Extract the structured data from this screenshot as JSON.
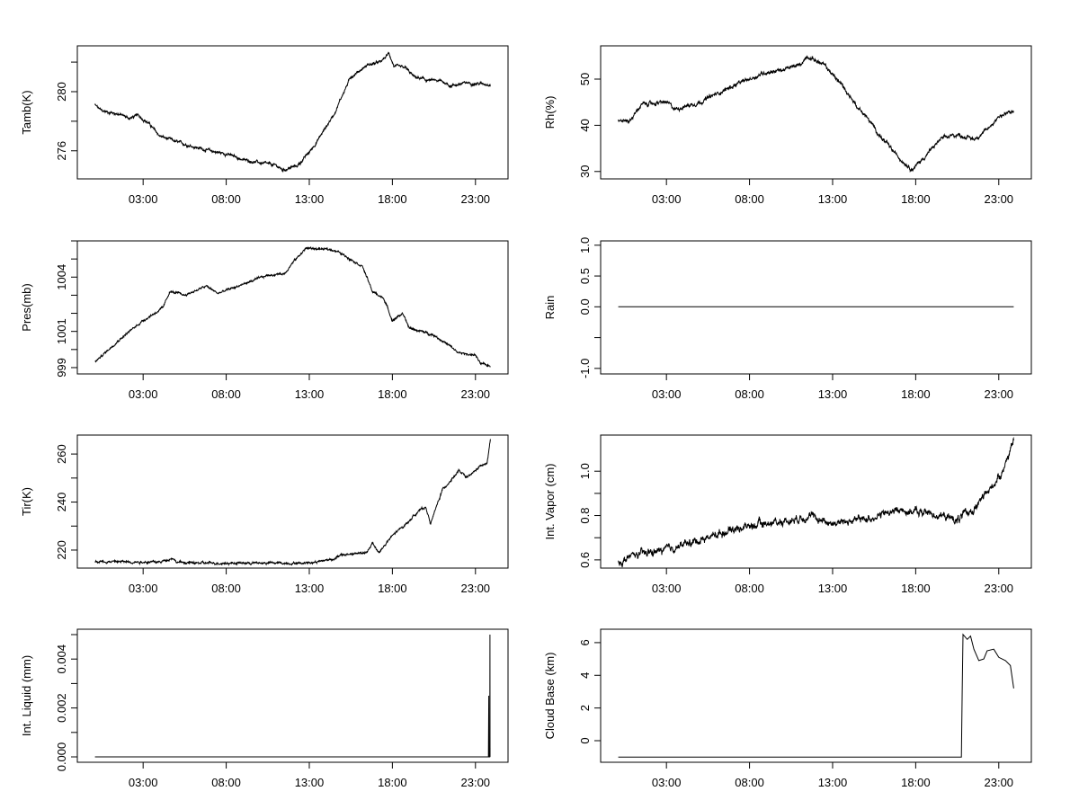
{
  "chart_data": [
    {
      "type": "line",
      "id": "tamb",
      "ylabel": "Tamb(K)",
      "ylim": [
        274.1,
        283.1
      ],
      "xlim": [
        0,
        24
      ],
      "xticks": [
        {
          "v": 3,
          "label": "03:00"
        },
        {
          "v": 8,
          "label": "08:00"
        },
        {
          "v": 13,
          "label": "13:00"
        },
        {
          "v": 18,
          "label": "18:00"
        },
        {
          "v": 23,
          "label": "23:00"
        }
      ],
      "yticks": [
        {
          "v": 276,
          "label": "276"
        },
        {
          "v": 278,
          "label": ""
        },
        {
          "v": 280,
          "label": "280"
        },
        {
          "v": 282,
          "label": ""
        }
      ],
      "noise": 0.08,
      "series": [
        [
          0.1,
          279.1
        ],
        [
          0.5,
          278.7
        ],
        [
          1.5,
          278.5
        ],
        [
          2.2,
          278.2
        ],
        [
          2.7,
          278.4
        ],
        [
          3.3,
          277.9
        ],
        [
          4,
          277.0
        ],
        [
          5,
          276.6
        ],
        [
          6,
          276.3
        ],
        [
          7,
          276.0
        ],
        [
          8,
          275.8
        ],
        [
          9,
          275.4
        ],
        [
          10,
          275.2
        ],
        [
          11,
          275.0
        ],
        [
          11.4,
          274.7
        ],
        [
          12.3,
          275.0
        ],
        [
          13,
          275.9
        ],
        [
          13.5,
          276.7
        ],
        [
          14.5,
          278.5
        ],
        [
          15,
          279.8
        ],
        [
          15.5,
          281.0
        ],
        [
          16.5,
          281.8
        ],
        [
          17.3,
          282.0
        ],
        [
          17.8,
          282.6
        ],
        [
          18.1,
          281.7
        ],
        [
          18.8,
          281.6
        ],
        [
          19.3,
          281.0
        ],
        [
          20,
          280.8
        ],
        [
          21,
          280.7
        ],
        [
          21.5,
          280.4
        ],
        [
          22.5,
          280.6
        ],
        [
          23.9,
          280.5
        ]
      ]
    },
    {
      "type": "line",
      "id": "rh",
      "ylabel": "Rh(%)",
      "ylim": [
        28.4,
        57.2
      ],
      "xlim": [
        0,
        24
      ],
      "xticks": [
        {
          "v": 3,
          "label": "03:00"
        },
        {
          "v": 8,
          "label": "08:00"
        },
        {
          "v": 13,
          "label": "13:00"
        },
        {
          "v": 18,
          "label": "18:00"
        },
        {
          "v": 23,
          "label": "23:00"
        }
      ],
      "yticks": [
        {
          "v": 30,
          "label": "30"
        },
        {
          "v": 40,
          "label": "40"
        },
        {
          "v": 50,
          "label": "50"
        }
      ],
      "noise": 0.35,
      "series": [
        [
          0.1,
          41
        ],
        [
          0.8,
          41
        ],
        [
          1.5,
          44.5
        ],
        [
          3,
          45
        ],
        [
          3.5,
          43.5
        ],
        [
          5,
          45
        ],
        [
          7,
          48.5
        ],
        [
          9,
          51.5
        ],
        [
          10,
          52
        ],
        [
          11,
          53
        ],
        [
          11.5,
          55
        ],
        [
          12.5,
          53
        ],
        [
          13.5,
          49
        ],
        [
          14.5,
          44
        ],
        [
          15,
          42
        ],
        [
          16,
          37
        ],
        [
          17,
          33
        ],
        [
          17.8,
          30.5
        ],
        [
          18.5,
          33
        ],
        [
          19.5,
          37
        ],
        [
          20.5,
          38
        ],
        [
          21.5,
          37
        ],
        [
          22.3,
          39
        ],
        [
          23,
          42
        ],
        [
          23.9,
          43
        ]
      ]
    },
    {
      "type": "line",
      "id": "pres",
      "ylabel": "Pres(mb)",
      "ylim": [
        998.65,
        1006
      ],
      "xlim": [
        0,
        24
      ],
      "xticks": [
        {
          "v": 3,
          "label": "03:00"
        },
        {
          "v": 8,
          "label": "08:00"
        },
        {
          "v": 13,
          "label": "13:00"
        },
        {
          "v": 18,
          "label": "18:00"
        },
        {
          "v": 23,
          "label": "23:00"
        }
      ],
      "yticks": [
        {
          "v": 999,
          "label": "999"
        },
        {
          "v": 1000,
          "label": ""
        },
        {
          "v": 1001,
          "label": "1001"
        },
        {
          "v": 1002,
          "label": ""
        },
        {
          "v": 1003,
          "label": ""
        },
        {
          "v": 1004,
          "label": "1004"
        },
        {
          "v": 1005,
          "label": ""
        },
        {
          "v": 1006,
          "label": ""
        }
      ],
      "noise": 0.05,
      "series": [
        [
          0.1,
          999.3
        ],
        [
          1.5,
          1000.5
        ],
        [
          3,
          1001.6
        ],
        [
          4.2,
          1002.3
        ],
        [
          4.6,
          1003.2
        ],
        [
          5.5,
          1003.0
        ],
        [
          6.8,
          1003.5
        ],
        [
          7.5,
          1003.1
        ],
        [
          9,
          1003.6
        ],
        [
          10.5,
          1004.1
        ],
        [
          11.5,
          1004.2
        ],
        [
          12,
          1004.8
        ],
        [
          12.8,
          1005.6
        ],
        [
          14.5,
          1005.5
        ],
        [
          15.5,
          1005.0
        ],
        [
          16.2,
          1004.6
        ],
        [
          16.8,
          1003.2
        ],
        [
          17.5,
          1002.8
        ],
        [
          18,
          1001.6
        ],
        [
          18.6,
          1002.0
        ],
        [
          19,
          1001.2
        ],
        [
          20.5,
          1000.8
        ],
        [
          21.3,
          1000.3
        ],
        [
          22,
          999.8
        ],
        [
          23,
          999.7
        ],
        [
          23.3,
          999.2
        ],
        [
          23.9,
          999.1
        ]
      ]
    },
    {
      "type": "line",
      "id": "rain",
      "ylabel": "Rain",
      "ylim": [
        -1.09,
        1.07
      ],
      "xlim": [
        0,
        24
      ],
      "xticks": [
        {
          "v": 3,
          "label": "03:00"
        },
        {
          "v": 8,
          "label": "08:00"
        },
        {
          "v": 13,
          "label": "13:00"
        },
        {
          "v": 18,
          "label": "18:00"
        },
        {
          "v": 23,
          "label": "23:00"
        }
      ],
      "yticks": [
        {
          "v": -1,
          "label": "-1.0"
        },
        {
          "v": -0.5,
          "label": ""
        },
        {
          "v": 0,
          "label": "0.0"
        },
        {
          "v": 0.5,
          "label": "0.5"
        },
        {
          "v": 1,
          "label": "1.0"
        }
      ],
      "noise": 0,
      "series": [
        [
          0.1,
          0
        ],
        [
          23.9,
          0
        ]
      ]
    },
    {
      "type": "line",
      "id": "tir",
      "ylabel": "Tir(K)",
      "ylim": [
        212.5,
        267.9
      ],
      "xlim": [
        0,
        24
      ],
      "xticks": [
        {
          "v": 3,
          "label": "03:00"
        },
        {
          "v": 8,
          "label": "08:00"
        },
        {
          "v": 13,
          "label": "13:00"
        },
        {
          "v": 18,
          "label": "18:00"
        },
        {
          "v": 23,
          "label": "23:00"
        }
      ],
      "yticks": [
        {
          "v": 220,
          "label": "220"
        },
        {
          "v": 230,
          "label": ""
        },
        {
          "v": 240,
          "label": "240"
        },
        {
          "v": 250,
          "label": ""
        },
        {
          "v": 260,
          "label": "260"
        }
      ],
      "noise": 0.4,
      "series": [
        [
          0.1,
          215.3
        ],
        [
          4,
          215
        ],
        [
          4.8,
          216.8
        ],
        [
          5,
          215
        ],
        [
          6,
          214.6
        ],
        [
          12.5,
          214.6
        ],
        [
          13.5,
          215.2
        ],
        [
          14.5,
          216.5
        ],
        [
          15,
          218
        ],
        [
          16.5,
          219
        ],
        [
          16.8,
          223
        ],
        [
          17.2,
          219
        ],
        [
          18,
          226
        ],
        [
          19,
          232
        ],
        [
          19.5,
          236
        ],
        [
          20,
          238
        ],
        [
          20.3,
          231
        ],
        [
          21,
          245
        ],
        [
          22,
          253
        ],
        [
          22.5,
          250
        ],
        [
          23.3,
          255
        ],
        [
          23.7,
          256
        ],
        [
          23.9,
          266
        ]
      ]
    },
    {
      "type": "line",
      "id": "vapor",
      "ylabel": "Int. Vapor (cm)",
      "ylim": [
        0.563,
        1.163
      ],
      "xlim": [
        0,
        24
      ],
      "xticks": [
        {
          "v": 3,
          "label": "03:00"
        },
        {
          "v": 8,
          "label": "08:00"
        },
        {
          "v": 13,
          "label": "13:00"
        },
        {
          "v": 18,
          "label": "18:00"
        },
        {
          "v": 23,
          "label": "23:00"
        }
      ],
      "yticks": [
        {
          "v": 0.6,
          "label": "0.6"
        },
        {
          "v": 0.7,
          "label": ""
        },
        {
          "v": 0.8,
          "label": "0.8"
        },
        {
          "v": 0.9,
          "label": ""
        },
        {
          "v": 1.0,
          "label": "1.0"
        }
      ],
      "noise": 0.014,
      "series": [
        [
          0.1,
          0.585
        ],
        [
          1,
          0.62
        ],
        [
          3,
          0.645
        ],
        [
          5,
          0.69
        ],
        [
          7,
          0.74
        ],
        [
          9,
          0.765
        ],
        [
          10.5,
          0.78
        ],
        [
          11.5,
          0.8
        ],
        [
          13,
          0.765
        ],
        [
          15,
          0.785
        ],
        [
          17,
          0.825
        ],
        [
          19,
          0.81
        ],
        [
          20.5,
          0.78
        ],
        [
          21.5,
          0.83
        ],
        [
          22.5,
          0.92
        ],
        [
          23.2,
          1.0
        ],
        [
          23.9,
          1.13
        ]
      ]
    },
    {
      "type": "line",
      "id": "liquid",
      "ylabel": "Int. Liquid (mm)",
      "ylim": [
        -0.00022,
        0.00522
      ],
      "xlim": [
        0,
        24
      ],
      "xticks": [
        {
          "v": 3,
          "label": "03:00"
        },
        {
          "v": 8,
          "label": "08:00"
        },
        {
          "v": 13,
          "label": "13:00"
        },
        {
          "v": 18,
          "label": "18:00"
        },
        {
          "v": 23,
          "label": "23:00"
        }
      ],
      "yticks": [
        {
          "v": 0,
          "label": "0.000"
        },
        {
          "v": 0.001,
          "label": ""
        },
        {
          "v": 0.002,
          "label": "0.002"
        },
        {
          "v": 0.003,
          "label": ""
        },
        {
          "v": 0.004,
          "label": "0.004"
        },
        {
          "v": 0.005,
          "label": ""
        }
      ],
      "noise": 0,
      "series": [
        [
          0.1,
          0
        ],
        [
          23.78,
          0
        ],
        [
          23.8,
          0.0025
        ],
        [
          23.81,
          0
        ],
        [
          23.86,
          0
        ],
        [
          23.87,
          0.005
        ],
        [
          23.88,
          0
        ]
      ]
    },
    {
      "type": "line",
      "id": "cloudbase",
      "ylabel": "Cloud Base (km)",
      "ylim": [
        -1.32,
        6.82
      ],
      "xlim": [
        0,
        24
      ],
      "xticks": [
        {
          "v": 3,
          "label": "03:00"
        },
        {
          "v": 8,
          "label": "08:00"
        },
        {
          "v": 13,
          "label": "13:00"
        },
        {
          "v": 18,
          "label": "18:00"
        },
        {
          "v": 23,
          "label": "23:00"
        }
      ],
      "yticks": [
        {
          "v": 0,
          "label": "0"
        },
        {
          "v": 2,
          "label": "2"
        },
        {
          "v": 4,
          "label": "4"
        },
        {
          "v": 6,
          "label": "6"
        }
      ],
      "noise": 0,
      "series": [
        [
          0.1,
          -1
        ],
        [
          20.75,
          -1
        ],
        [
          20.8,
          3
        ],
        [
          20.85,
          6.5
        ],
        [
          21.1,
          6.2
        ],
        [
          21.3,
          6.4
        ],
        [
          21.5,
          5.6
        ],
        [
          21.8,
          4.9
        ],
        [
          22.1,
          5.0
        ],
        [
          22.3,
          5.5
        ],
        [
          22.7,
          5.6
        ],
        [
          23,
          5.1
        ],
        [
          23.4,
          4.9
        ],
        [
          23.7,
          4.6
        ],
        [
          23.9,
          3.2
        ]
      ]
    }
  ]
}
